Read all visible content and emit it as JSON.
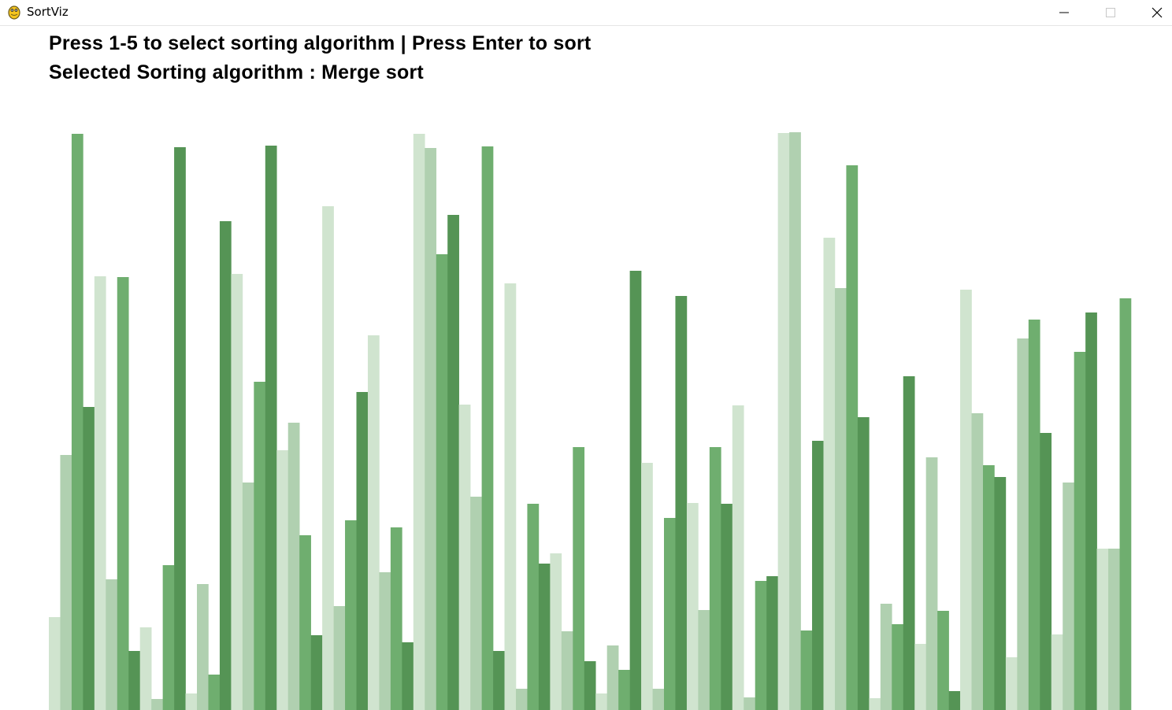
{
  "window": {
    "title": "SortViz",
    "controls": {
      "minimize": "minimize-icon",
      "maximize": "maximize-icon",
      "close": "close-icon"
    }
  },
  "instructions": {
    "line1": "Press 1-5 to select sorting algorithm | Press Enter to sort",
    "line2": "Selected Sorting algorithm : Merge sort"
  },
  "colors": [
    "#d0e4cf",
    "#b0d0b0",
    "#6fae6f",
    "#559455"
  ],
  "chart_data": {
    "type": "bar",
    "ylim": [
      0,
      735
    ],
    "values": [
      118,
      324,
      732,
      385,
      551,
      166,
      550,
      75,
      105,
      14,
      184,
      715,
      21,
      160,
      45,
      621,
      554,
      289,
      417,
      717,
      330,
      365,
      222,
      95,
      640,
      132,
      241,
      404,
      476,
      175,
      232,
      86,
      732,
      714,
      579,
      629,
      388,
      271,
      716,
      75,
      542,
      27,
      262,
      186,
      199,
      100,
      334,
      62,
      21,
      82,
      51,
      558,
      314,
      27,
      244,
      526,
      263,
      127,
      334,
      262,
      387,
      16,
      164,
      170,
      733,
      734,
      101,
      342,
      600,
      536,
      692,
      372,
      15,
      135,
      109,
      424,
      84,
      321,
      126,
      24,
      534,
      377,
      311,
      296,
      67,
      472,
      496,
      352,
      96,
      289,
      455,
      505,
      205,
      205,
      523
    ]
  }
}
